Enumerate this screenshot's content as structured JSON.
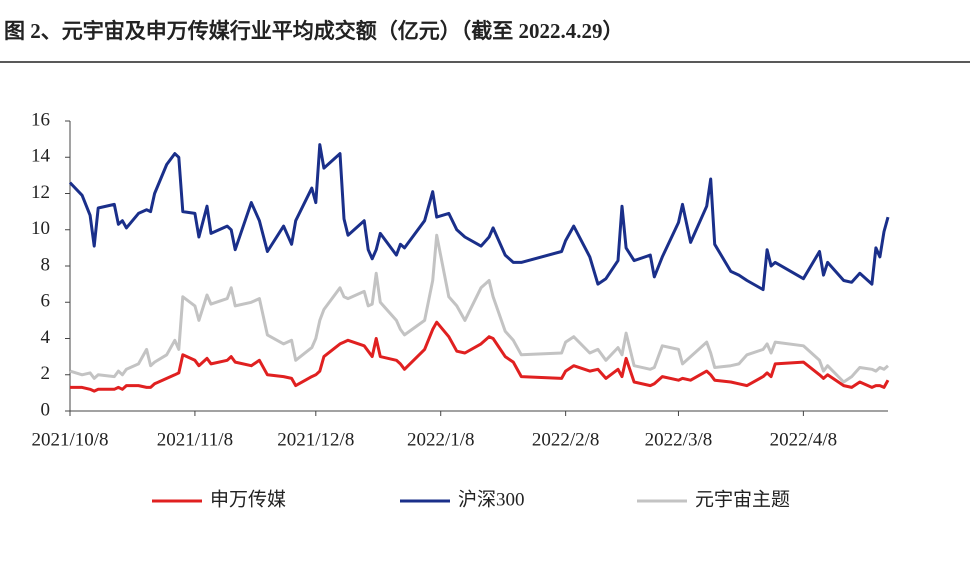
{
  "chart_data": {
    "type": "line",
    "title": "图 2、元宇宙及申万传媒行业平均成交额（亿元）（截至 2022.4.29）",
    "x": [
      "2021-10-08",
      "2021-10-11",
      "2021-10-13",
      "2021-10-14",
      "2021-10-15",
      "2021-10-19",
      "2021-10-20",
      "2021-10-21",
      "2021-10-22",
      "2021-10-25",
      "2021-10-27",
      "2021-10-28",
      "2021-10-29",
      "2021-11-01",
      "2021-11-03",
      "2021-11-04",
      "2021-11-05",
      "2021-11-08",
      "2021-11-09",
      "2021-11-11",
      "2021-11-12",
      "2021-11-16",
      "2021-11-17",
      "2021-11-18",
      "2021-11-22",
      "2021-11-24",
      "2021-11-26",
      "2021-11-30",
      "2021-12-02",
      "2021-12-03",
      "2021-12-07",
      "2021-12-08",
      "2021-12-09",
      "2021-12-10",
      "2021-12-14",
      "2021-12-15",
      "2021-12-16",
      "2021-12-20",
      "2021-12-21",
      "2021-12-22",
      "2021-12-23",
      "2021-12-24",
      "2021-12-28",
      "2021-12-29",
      "2021-12-30",
      "2022-01-04",
      "2022-01-06",
      "2022-01-07",
      "2022-01-10",
      "2022-01-12",
      "2022-01-14",
      "2022-01-18",
      "2022-01-20",
      "2022-01-21",
      "2022-01-24",
      "2022-01-26",
      "2022-01-28",
      "2022-02-07",
      "2022-02-08",
      "2022-02-10",
      "2022-02-14",
      "2022-02-16",
      "2022-02-18",
      "2022-02-21",
      "2022-02-22",
      "2022-02-23",
      "2022-02-25",
      "2022-03-01",
      "2022-03-02",
      "2022-03-04",
      "2022-03-08",
      "2022-03-09",
      "2022-03-11",
      "2022-03-15",
      "2022-03-16",
      "2022-03-17",
      "2022-03-21",
      "2022-03-23",
      "2022-03-25",
      "2022-03-29",
      "2022-03-30",
      "2022-03-31",
      "2022-04-01",
      "2022-04-08",
      "2022-04-12",
      "2022-04-13",
      "2022-04-14",
      "2022-04-18",
      "2022-04-20",
      "2022-04-22",
      "2022-04-25",
      "2022-04-26",
      "2022-04-27",
      "2022-04-28",
      "2022-04-29"
    ],
    "series": [
      {
        "name": "申万传媒",
        "color": "#e02020",
        "values": [
          1.3,
          1.3,
          1.2,
          1.1,
          1.2,
          1.2,
          1.3,
          1.2,
          1.4,
          1.4,
          1.3,
          1.3,
          1.5,
          1.8,
          2.0,
          2.1,
          3.1,
          2.8,
          2.5,
          2.9,
          2.6,
          2.8,
          3.0,
          2.7,
          2.5,
          2.8,
          2.0,
          1.9,
          1.8,
          1.4,
          1.9,
          2.0,
          2.2,
          3.0,
          3.7,
          3.8,
          3.9,
          3.6,
          3.3,
          3.0,
          4.0,
          3.0,
          2.8,
          2.6,
          2.3,
          3.4,
          4.5,
          4.9,
          4.1,
          3.3,
          3.2,
          3.7,
          4.1,
          4.0,
          3.0,
          2.7,
          1.9,
          1.8,
          2.2,
          2.5,
          2.2,
          2.3,
          1.8,
          2.3,
          1.9,
          2.9,
          1.6,
          1.4,
          1.5,
          1.9,
          1.7,
          1.8,
          1.7,
          2.2,
          2.0,
          1.7,
          1.6,
          1.5,
          1.4,
          1.9,
          2.1,
          1.9,
          2.6,
          2.7,
          2.0,
          1.8,
          2.0,
          1.4,
          1.3,
          1.6,
          1.3,
          1.4,
          1.4,
          1.3,
          1.7
        ]
      },
      {
        "name": "沪深300",
        "color": "#1a2f8a",
        "values": [
          12.6,
          11.9,
          10.8,
          9.1,
          11.2,
          11.4,
          10.3,
          10.5,
          10.1,
          10.9,
          11.1,
          11.0,
          12.0,
          13.6,
          14.2,
          14.0,
          11.0,
          10.9,
          9.6,
          11.3,
          9.8,
          10.2,
          10.0,
          8.9,
          11.5,
          10.5,
          8.8,
          10.2,
          9.2,
          10.5,
          12.3,
          11.5,
          14.7,
          13.4,
          14.2,
          10.6,
          9.7,
          10.5,
          8.9,
          8.4,
          8.9,
          9.8,
          8.6,
          9.2,
          9.0,
          10.5,
          12.1,
          10.7,
          10.9,
          10.0,
          9.6,
          9.1,
          9.6,
          10.1,
          8.6,
          8.2,
          8.2,
          8.8,
          9.4,
          10.2,
          8.5,
          7.0,
          7.3,
          8.3,
          11.3,
          9.0,
          8.3,
          8.6,
          7.4,
          8.5,
          10.4,
          11.4,
          9.3,
          11.3,
          12.8,
          9.2,
          7.7,
          7.5,
          7.2,
          6.7,
          8.9,
          8.0,
          8.2,
          7.3,
          8.8,
          7.5,
          8.2,
          7.2,
          7.1,
          7.6,
          7.0,
          9.0,
          8.5,
          9.9,
          10.7
        ]
      },
      {
        "name": "元宇宙主题",
        "color": "#c3c3c3",
        "values": [
          2.2,
          2.0,
          2.1,
          1.8,
          2.0,
          1.9,
          2.2,
          2.0,
          2.3,
          2.6,
          3.4,
          2.5,
          2.7,
          3.1,
          3.9,
          3.4,
          6.3,
          5.8,
          5.0,
          6.4,
          5.9,
          6.2,
          6.8,
          5.8,
          6.0,
          6.2,
          4.2,
          3.7,
          3.9,
          2.8,
          3.5,
          4.0,
          5.0,
          5.6,
          6.8,
          6.3,
          6.2,
          6.6,
          5.8,
          5.9,
          7.6,
          6.0,
          5.0,
          4.5,
          4.2,
          5.0,
          7.2,
          9.7,
          6.3,
          5.8,
          5.0,
          6.8,
          7.2,
          6.3,
          4.4,
          3.9,
          3.1,
          3.2,
          3.8,
          4.1,
          3.2,
          3.4,
          2.8,
          3.5,
          3.1,
          4.3,
          2.5,
          2.3,
          2.4,
          3.6,
          3.4,
          2.6,
          3.0,
          3.8,
          3.2,
          2.4,
          2.5,
          2.6,
          3.1,
          3.4,
          3.7,
          3.2,
          3.8,
          3.6,
          2.8,
          2.2,
          2.5,
          1.6,
          1.9,
          2.4,
          2.3,
          2.2,
          2.4,
          2.3,
          2.5
        ]
      }
    ],
    "xlim": [
      "2021-10-08",
      "2022-04-29"
    ],
    "xticks": [
      {
        "value": "2021-10-08",
        "label": "2021/10/8"
      },
      {
        "value": "2021-11-08",
        "label": "2021/11/8"
      },
      {
        "value": "2021-12-08",
        "label": "2021/12/8"
      },
      {
        "value": "2022-01-08",
        "label": "2022/1/8"
      },
      {
        "value": "2022-02-08",
        "label": "2022/2/8"
      },
      {
        "value": "2022-03-08",
        "label": "2022/3/8"
      },
      {
        "value": "2022-04-08",
        "label": "2022/4/8"
      }
    ],
    "ylim": [
      0,
      16
    ],
    "yticks": [
      0,
      2,
      4,
      6,
      8,
      10,
      12,
      14,
      16
    ],
    "legend": "bottom"
  }
}
